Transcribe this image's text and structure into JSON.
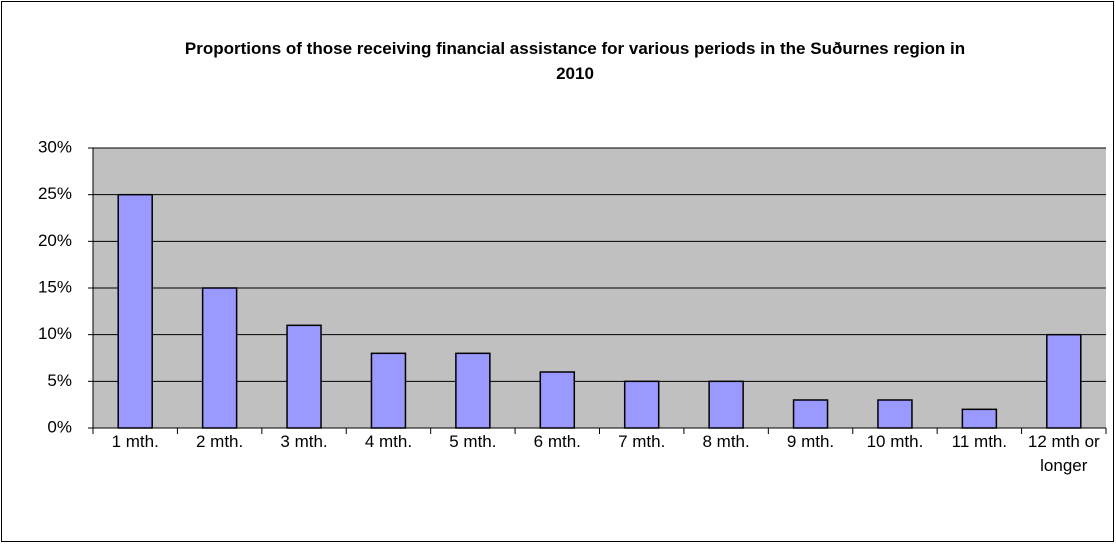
{
  "chart_data": {
    "type": "bar",
    "title": "Proportions of those receiving financial assistance for various periods in the Suðurnes region in 2010",
    "categories": [
      "1 mth.",
      "2 mth.",
      "3 mth.",
      "4 mth.",
      "5 mth.",
      "6 mth.",
      "7 mth.",
      "8 mth.",
      "9 mth.",
      "10 mth.",
      "11 mth.",
      "12 mth or longer"
    ],
    "values": [
      25,
      15,
      11,
      8,
      8,
      6,
      5,
      5,
      3,
      3,
      2,
      10
    ],
    "color": "#9999ff",
    "ylim": [
      0,
      30
    ],
    "yticks": [
      {
        "value": 0,
        "label": "0%"
      },
      {
        "value": 5,
        "label": "5%"
      },
      {
        "value": 10,
        "label": "10%"
      },
      {
        "value": 15,
        "label": "15%"
      },
      {
        "value": 20,
        "label": "20%"
      },
      {
        "value": 25,
        "label": "25%"
      },
      {
        "value": 30,
        "label": "30%"
      }
    ],
    "grid": true
  }
}
